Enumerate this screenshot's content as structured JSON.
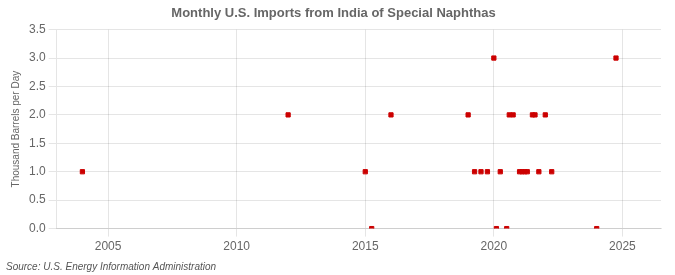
{
  "chart_data": {
    "type": "scatter",
    "title": "Monthly U.S. Imports from India of Special Naphthas",
    "y_label": "Thousand Barrels per Day",
    "annotations": [
      "Source: U.S. Energy Information Administration"
    ],
    "color": "#cc0000",
    "marker": "square",
    "grid": true,
    "xlim": [
      2003,
      2026.5
    ],
    "ylim": [
      0,
      3.5
    ],
    "xticks": [
      2005,
      2010,
      2015,
      2020,
      2025
    ],
    "yticks": [
      {
        "value": 0.0,
        "label": "0.0"
      },
      0.5,
      {
        "value": 1.0,
        "label": "1.0"
      },
      1.5,
      {
        "value": 2.0,
        "label": "2.0"
      },
      2.5,
      {
        "value": 3.0,
        "label": "3.0"
      },
      3.5
    ],
    "x": [
      2004.0,
      2012.0,
      2015.0,
      2015.25,
      2016.0,
      2019.0,
      2019.25,
      2019.5,
      2019.75,
      2020.0,
      2020.1,
      2020.25,
      2020.5,
      2020.6,
      2020.75,
      2021.0,
      2021.1,
      2021.2,
      2021.3,
      2021.5,
      2021.6,
      2021.75,
      2022.0,
      2022.25,
      2024.0,
      2024.75
    ],
    "values": [
      1.0,
      2.0,
      1.0,
      0.0,
      2.0,
      2.0,
      1.0,
      1.0,
      1.0,
      3.0,
      0.0,
      1.0,
      0.0,
      2.0,
      2.0,
      1.0,
      1.0,
      1.0,
      1.0,
      2.0,
      2.0,
      1.0,
      2.0,
      1.0,
      0.0,
      3.0
    ]
  }
}
